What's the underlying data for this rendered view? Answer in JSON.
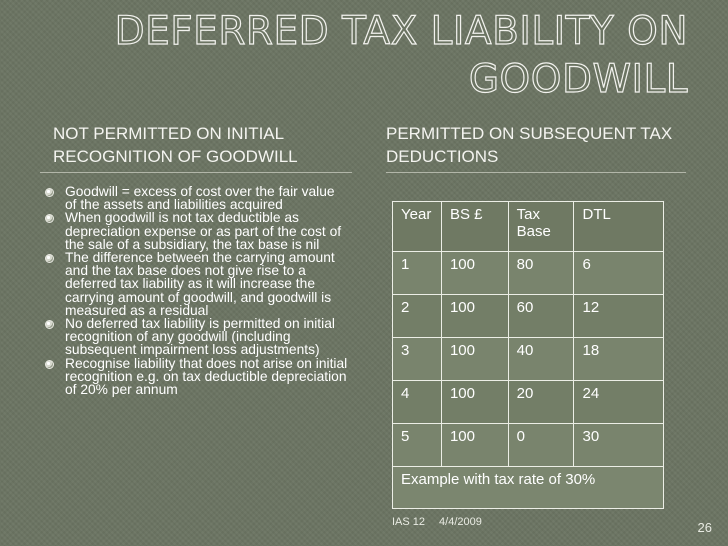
{
  "slide": {
    "title": "DEFERRED TAX LIABILITY ON GOODWILL",
    "left_heading": "NOT PERMITTED ON INITIAL RECOGNITION OF GOODWILL",
    "right_heading": "PERMITTED ON SUBSEQUENT TAX DEDUCTIONS",
    "bullets": [
      "Goodwill = excess of cost over the fair value of the assets and liabilities acquired",
      "When goodwill is not tax deductible as depreciation expense or as part of the cost of the sale of a subsidiary, the tax base is nil",
      "The difference between the carrying amount and the tax base does not give rise to a deferred tax liability as it will increase the carrying amount of goodwill, and goodwill is measured as a residual",
      "No deferred tax liability is permitted on initial recognition of any goodwill (including subsequent impairment loss adjustments)",
      "Recognise liability that does not arise on initial recognition e.g. on tax deductible depreciation of 20% per annum"
    ]
  },
  "table": {
    "headers": [
      "Year",
      "BS £",
      "Tax Base",
      "DTL"
    ],
    "rows": [
      [
        "1",
        "100",
        "80",
        "6"
      ],
      [
        "2",
        "100",
        "60",
        "12"
      ],
      [
        "3",
        "100",
        "40",
        "18"
      ],
      [
        "4",
        "100",
        "20",
        "24"
      ],
      [
        "5",
        "100",
        "0",
        "30"
      ]
    ],
    "caption": "Example with tax rate of 30%"
  },
  "footer": {
    "source": "IAS 12",
    "date": "4/4/2009",
    "page_number": "26"
  },
  "colors": {
    "background": "#6b7462",
    "text": "#ffffff",
    "table_border": "#eceee6"
  }
}
